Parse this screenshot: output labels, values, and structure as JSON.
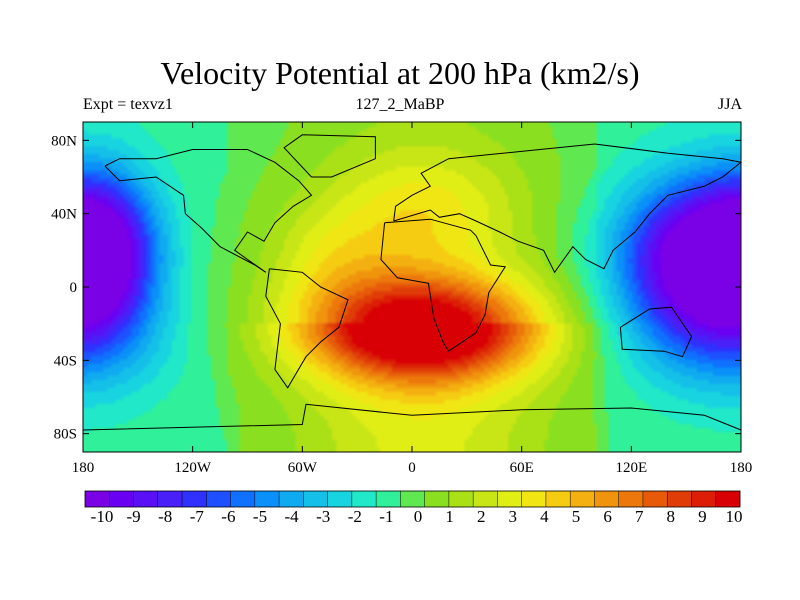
{
  "title": "Velocity Potential at 200 hPa (km2/s)",
  "subtitle_left": "Expt = texvz1",
  "subtitle_center": "127_2_MaBP",
  "subtitle_right": "JJA",
  "chart_data": {
    "type": "heatmap",
    "title": "Velocity Potential at 200 hPa (km2/s)",
    "x_ticks": [
      "180",
      "120W",
      "60W",
      "0",
      "60E",
      "120E",
      "180"
    ],
    "y_ticks": [
      "80N",
      "40N",
      "0",
      "40S",
      "80S"
    ],
    "x_range": [
      -180,
      180
    ],
    "y_range": [
      -90,
      90
    ],
    "colorbar": {
      "labels": [
        "-10",
        "-9",
        "-8",
        "-7",
        "-6",
        "-5",
        "-4",
        "-3",
        "-2",
        "-1",
        "0",
        "1",
        "2",
        "3",
        "4",
        "5",
        "6",
        "7",
        "8",
        "9",
        "10"
      ],
      "range": [
        -10,
        10
      ],
      "colors": [
        "#7a00e6",
        "#6a00f2",
        "#5a10f5",
        "#4a20f8",
        "#3030ff",
        "#1e50ff",
        "#1070ff",
        "#0a90f8",
        "#10aaf0",
        "#14c0e8",
        "#18d4e0",
        "#20e8c8",
        "#30f09a",
        "#60e850",
        "#8ae020",
        "#aae016",
        "#c8e616",
        "#e0ee16",
        "#f0e614",
        "#f6cc12",
        "#f4b010",
        "#f0940e",
        "#ec780c",
        "#e65a0a",
        "#e03c08",
        "#dc1e06",
        "#d80004"
      ]
    }
  }
}
